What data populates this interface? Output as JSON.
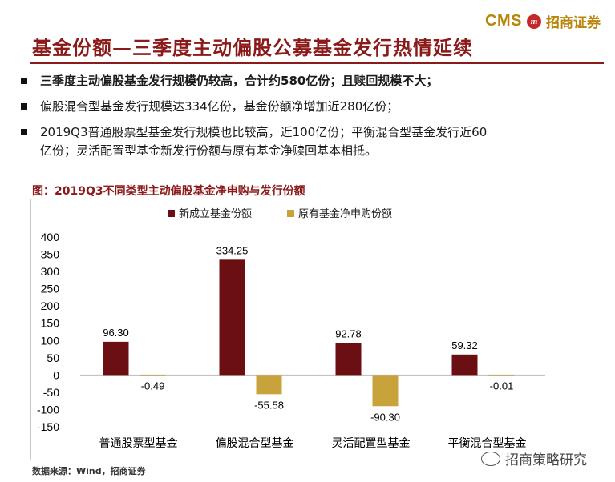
{
  "header": {
    "logo_cms": "CMS",
    "logo_mark": "m",
    "logo_cn": "招商证券"
  },
  "title": "基金份额—三季度主动偏股公募基金发行热情延续",
  "bullets": [
    {
      "text": "三季度主动偏股基金发行规模仍较高，合计约580亿份；且赎回规模不大；",
      "bold": true
    },
    {
      "text": "偏股混合型基金发行规模达334亿份，基金份额净增加近280亿份；",
      "bold": false
    },
    {
      "text": "2019Q3普通股票型基金发行规模也比较高，近100亿份；平衡混合型基金发行近60",
      "cont": "亿份；灵活配置型基金新发行份额与原有基金净赎回基本相抵。",
      "bold": false
    }
  ],
  "chart_title": "图：2019Q3不同类型主动偏股基金净申购与发行份额",
  "source": "数据来源：Wind，招商证券",
  "watermark": "招商策略研究",
  "colors": {
    "series1": "#6b0f12",
    "series2": "#c8a23a",
    "brand": "#8b1a1a",
    "logo": "#b8860b"
  },
  "chart_data": {
    "type": "bar",
    "categories": [
      "普通股票型基金",
      "偏股混合型基金",
      "灵活配置型基金",
      "平衡混合型基金"
    ],
    "series": [
      {
        "name": "新成立基金份额",
        "values": [
          96.3,
          334.25,
          92.78,
          59.32
        ],
        "labels": [
          "96.30",
          "334.25",
          "92.78",
          "59.32"
        ]
      },
      {
        "name": "原有基金净申购份额",
        "values": [
          -0.49,
          -55.58,
          -90.3,
          -0.01
        ],
        "labels": [
          "-0.49",
          "-55.58",
          "-90.30",
          "-0.01"
        ]
      }
    ],
    "ylim": [
      -150,
      400
    ],
    "yticks": [
      "400",
      "350",
      "300",
      "250",
      "200",
      "150",
      "100",
      "50",
      "0",
      "-50",
      "-100",
      "-150"
    ],
    "grid": false,
    "legend": "top"
  }
}
